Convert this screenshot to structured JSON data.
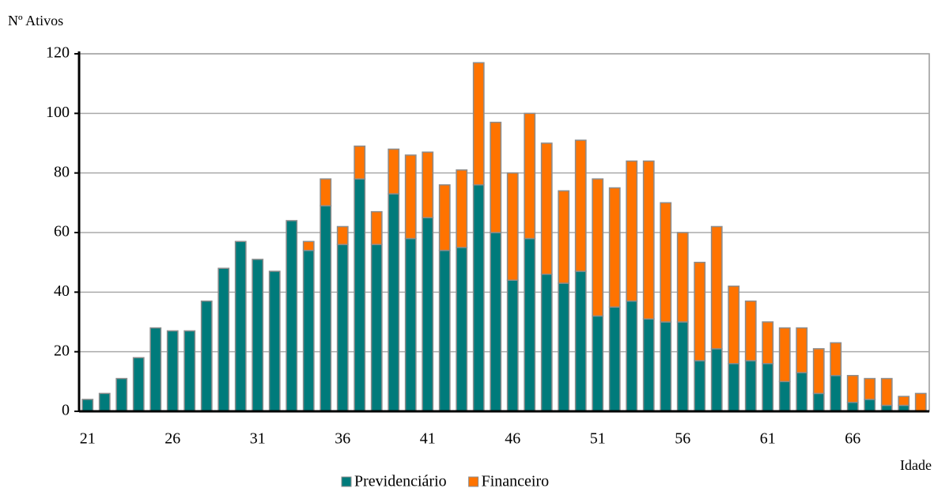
{
  "chart_data": {
    "type": "stacked_bar",
    "y_label": "Nº Ativos",
    "x_label": "Idade",
    "categories": [
      "21",
      null,
      null,
      null,
      null,
      "26",
      null,
      null,
      null,
      null,
      "31",
      null,
      null,
      null,
      null,
      "36",
      null,
      null,
      null,
      null,
      "41",
      null,
      null,
      null,
      null,
      "46",
      null,
      null,
      null,
      null,
      "51",
      null,
      null,
      null,
      null,
      "56",
      null,
      null,
      null,
      null,
      "61",
      null,
      null,
      null,
      null,
      "66",
      null,
      null,
      null,
      null
    ],
    "series": [
      {
        "name": "Previdenciário",
        "color": "#007b7b",
        "values": [
          4,
          6,
          11,
          18,
          28,
          27,
          27,
          37,
          48,
          57,
          51,
          47,
          64,
          54,
          69,
          56,
          78,
          56,
          73,
          58,
          65,
          54,
          55,
          76,
          60,
          44,
          58,
          46,
          43,
          47,
          32,
          35,
          37,
          31,
          30,
          30,
          17,
          21,
          16,
          17,
          16,
          10,
          13,
          6,
          12,
          3,
          4,
          2,
          2,
          0
        ]
      },
      {
        "name": "Financeiro",
        "color": "#ff7300",
        "values": [
          0,
          0,
          0,
          0,
          0,
          0,
          0,
          0,
          0,
          0,
          0,
          0,
          0,
          3,
          9,
          6,
          11,
          11,
          15,
          28,
          22,
          22,
          26,
          41,
          37,
          36,
          42,
          44,
          31,
          44,
          46,
          40,
          47,
          53,
          40,
          30,
          33,
          41,
          26,
          20,
          14,
          18,
          15,
          15,
          11,
          9,
          7,
          9,
          3,
          6
        ]
      }
    ],
    "ylim": [
      0,
      120
    ],
    "yticks": [
      0,
      20,
      40,
      60,
      80,
      100,
      120
    ],
    "grid": true
  }
}
